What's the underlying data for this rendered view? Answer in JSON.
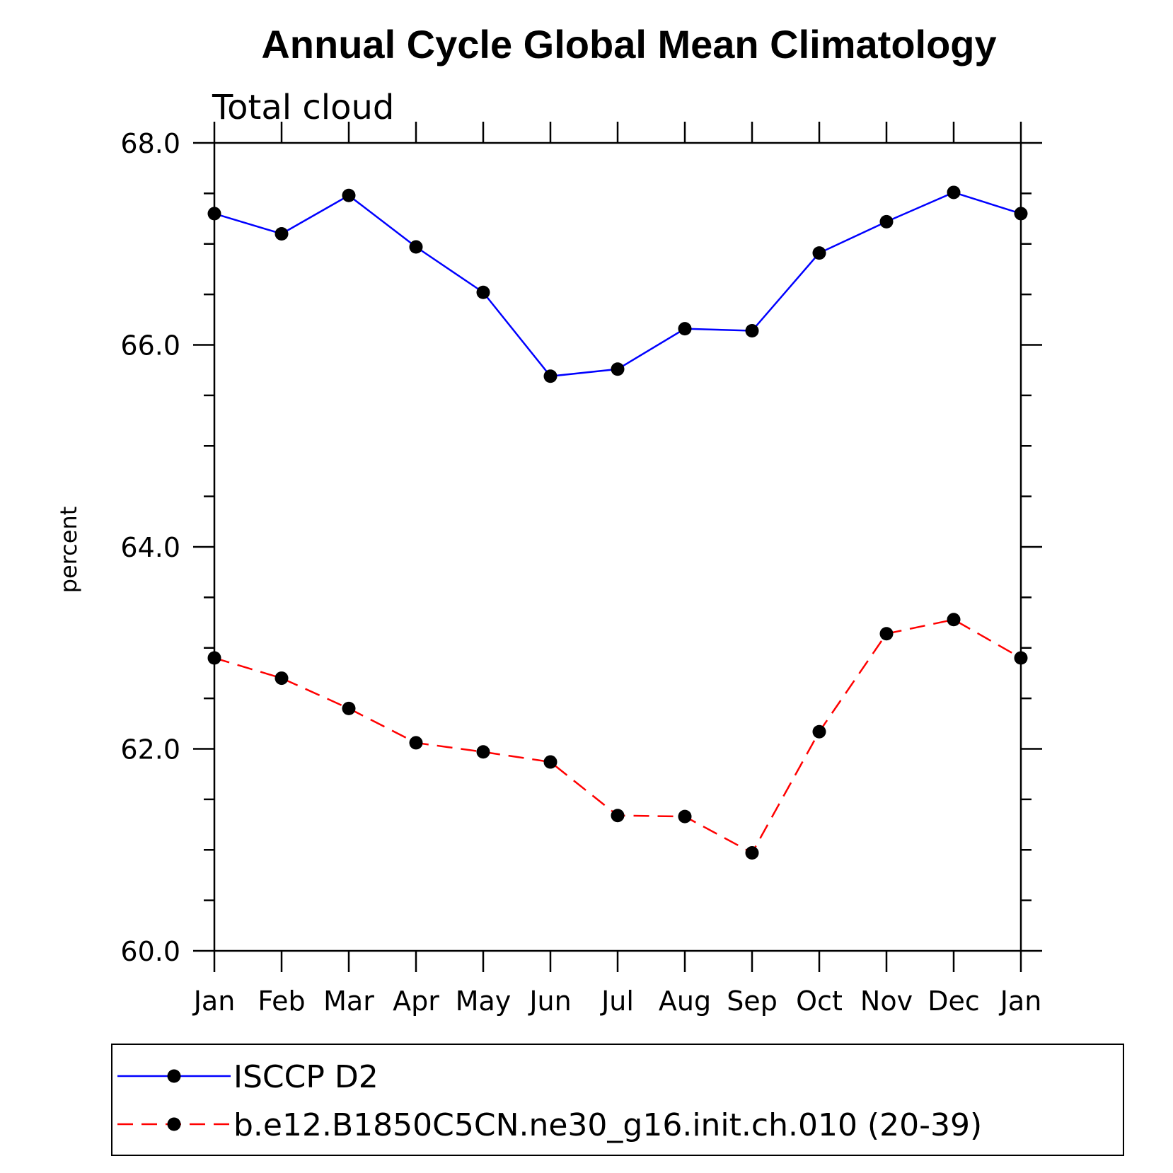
{
  "chart_data": {
    "type": "line",
    "title": "Annual Cycle Global Mean Climatology",
    "subtitle": "Total cloud",
    "xlabel": "",
    "ylabel": "percent",
    "categories": [
      "Jan",
      "Feb",
      "Mar",
      "Apr",
      "May",
      "Jun",
      "Jul",
      "Aug",
      "Sep",
      "Oct",
      "Nov",
      "Dec",
      "Jan"
    ],
    "ylim": [
      60.0,
      68.0
    ],
    "yticks": [
      "60.0",
      "62.0",
      "64.0",
      "66.0",
      "68.0"
    ],
    "grid": false,
    "legend_position": "bottom",
    "series": [
      {
        "name": "ISCCP D2",
        "color": "#0000ff",
        "style": "solid",
        "marker": "filled-circle",
        "values": [
          67.3,
          67.1,
          67.48,
          66.97,
          66.52,
          65.69,
          65.76,
          66.16,
          66.14,
          66.91,
          67.22,
          67.51,
          67.3
        ]
      },
      {
        "name": "b.e12.B1850C5CN.ne30_g16.init.ch.010 (20-39)",
        "color": "#ff0000",
        "style": "dashed",
        "marker": "filled-circle",
        "values": [
          62.9,
          62.7,
          62.4,
          62.06,
          61.97,
          61.87,
          61.34,
          61.33,
          60.97,
          62.17,
          63.14,
          63.28,
          62.9
        ]
      }
    ]
  }
}
